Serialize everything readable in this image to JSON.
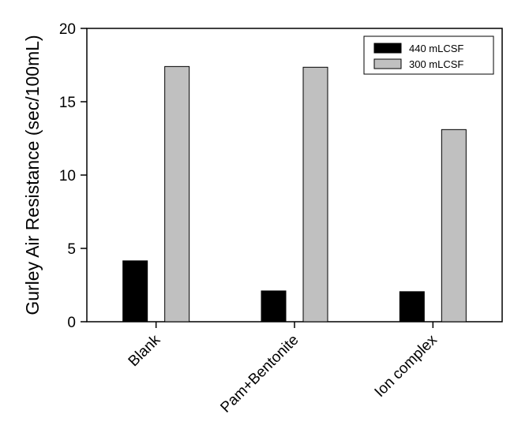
{
  "chart_data": {
    "type": "bar",
    "title": "",
    "xlabel": "",
    "ylabel": "Gurley Air Resistance (sec/100mL)",
    "categories": [
      "Blank",
      "Pam+Bentonite",
      "Ion complex"
    ],
    "series": [
      {
        "name": "440 mLCSF",
        "values": [
          4.15,
          2.1,
          2.05
        ],
        "color": "#000000"
      },
      {
        "name": "300 mLCSF",
        "values": [
          17.4,
          17.35,
          13.1
        ],
        "color": "#c0c0c0"
      }
    ],
    "ylim": [
      0,
      20
    ],
    "yticks": [
      0,
      5,
      10,
      15,
      20
    ],
    "grid": false,
    "legend_position": "top-right"
  }
}
